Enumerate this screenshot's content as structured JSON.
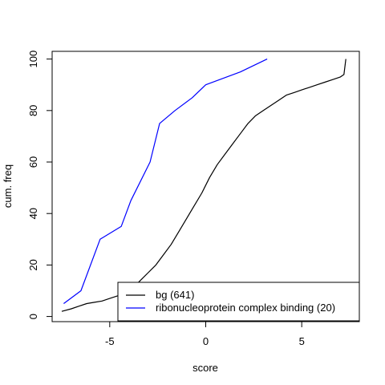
{
  "chart_data": {
    "type": "line",
    "xlabel": "score",
    "ylabel": "cum. freq",
    "xlim": [
      -8,
      8
    ],
    "ylim": [
      -2,
      103
    ],
    "x_ticks": [
      -5,
      0,
      5
    ],
    "x_tick_labels": [
      "-5",
      "0",
      "5"
    ],
    "y_ticks": [
      0,
      20,
      40,
      60,
      80,
      100
    ],
    "y_tick_labels": [
      "0",
      "20",
      "40",
      "60",
      "80",
      "100"
    ],
    "grid": false,
    "legend_position": "bottom-right",
    "series": [
      {
        "name": "bg (641)",
        "color": "#000000",
        "points": [
          [
            -7.5,
            2
          ],
          [
            -7.0,
            3
          ],
          [
            -6.6,
            4
          ],
          [
            -6.2,
            5
          ],
          [
            -5.8,
            5.5
          ],
          [
            -5.4,
            6
          ],
          [
            -5.0,
            7
          ],
          [
            -4.6,
            8
          ],
          [
            -4.2,
            9
          ],
          [
            -3.8,
            11
          ],
          [
            -3.4,
            14
          ],
          [
            -3.0,
            17
          ],
          [
            -2.6,
            20
          ],
          [
            -2.2,
            24
          ],
          [
            -1.8,
            28
          ],
          [
            -1.4,
            33
          ],
          [
            -1.0,
            38
          ],
          [
            -0.6,
            43
          ],
          [
            -0.2,
            48
          ],
          [
            0.2,
            54
          ],
          [
            0.6,
            59
          ],
          [
            1.0,
            63
          ],
          [
            1.4,
            67
          ],
          [
            1.8,
            71
          ],
          [
            2.2,
            75
          ],
          [
            2.6,
            78
          ],
          [
            3.0,
            80
          ],
          [
            3.4,
            82
          ],
          [
            3.8,
            84
          ],
          [
            4.2,
            86
          ],
          [
            4.6,
            87
          ],
          [
            5.0,
            88
          ],
          [
            5.4,
            89
          ],
          [
            5.8,
            90
          ],
          [
            6.2,
            91
          ],
          [
            6.6,
            92
          ],
          [
            7.0,
            93
          ],
          [
            7.2,
            94
          ],
          [
            7.3,
            100
          ]
        ]
      },
      {
        "name": "ribonucleoprotein complex binding (20)",
        "color": "#0000ff",
        "points": [
          [
            -7.4,
            5
          ],
          [
            -6.5,
            10
          ],
          [
            -5.5,
            30
          ],
          [
            -4.4,
            35
          ],
          [
            -3.9,
            45
          ],
          [
            -2.9,
            60
          ],
          [
            -2.4,
            75
          ],
          [
            -1.6,
            80
          ],
          [
            -0.7,
            85
          ],
          [
            0.0,
            90
          ],
          [
            1.8,
            95
          ],
          [
            3.2,
            100
          ]
        ]
      }
    ]
  }
}
